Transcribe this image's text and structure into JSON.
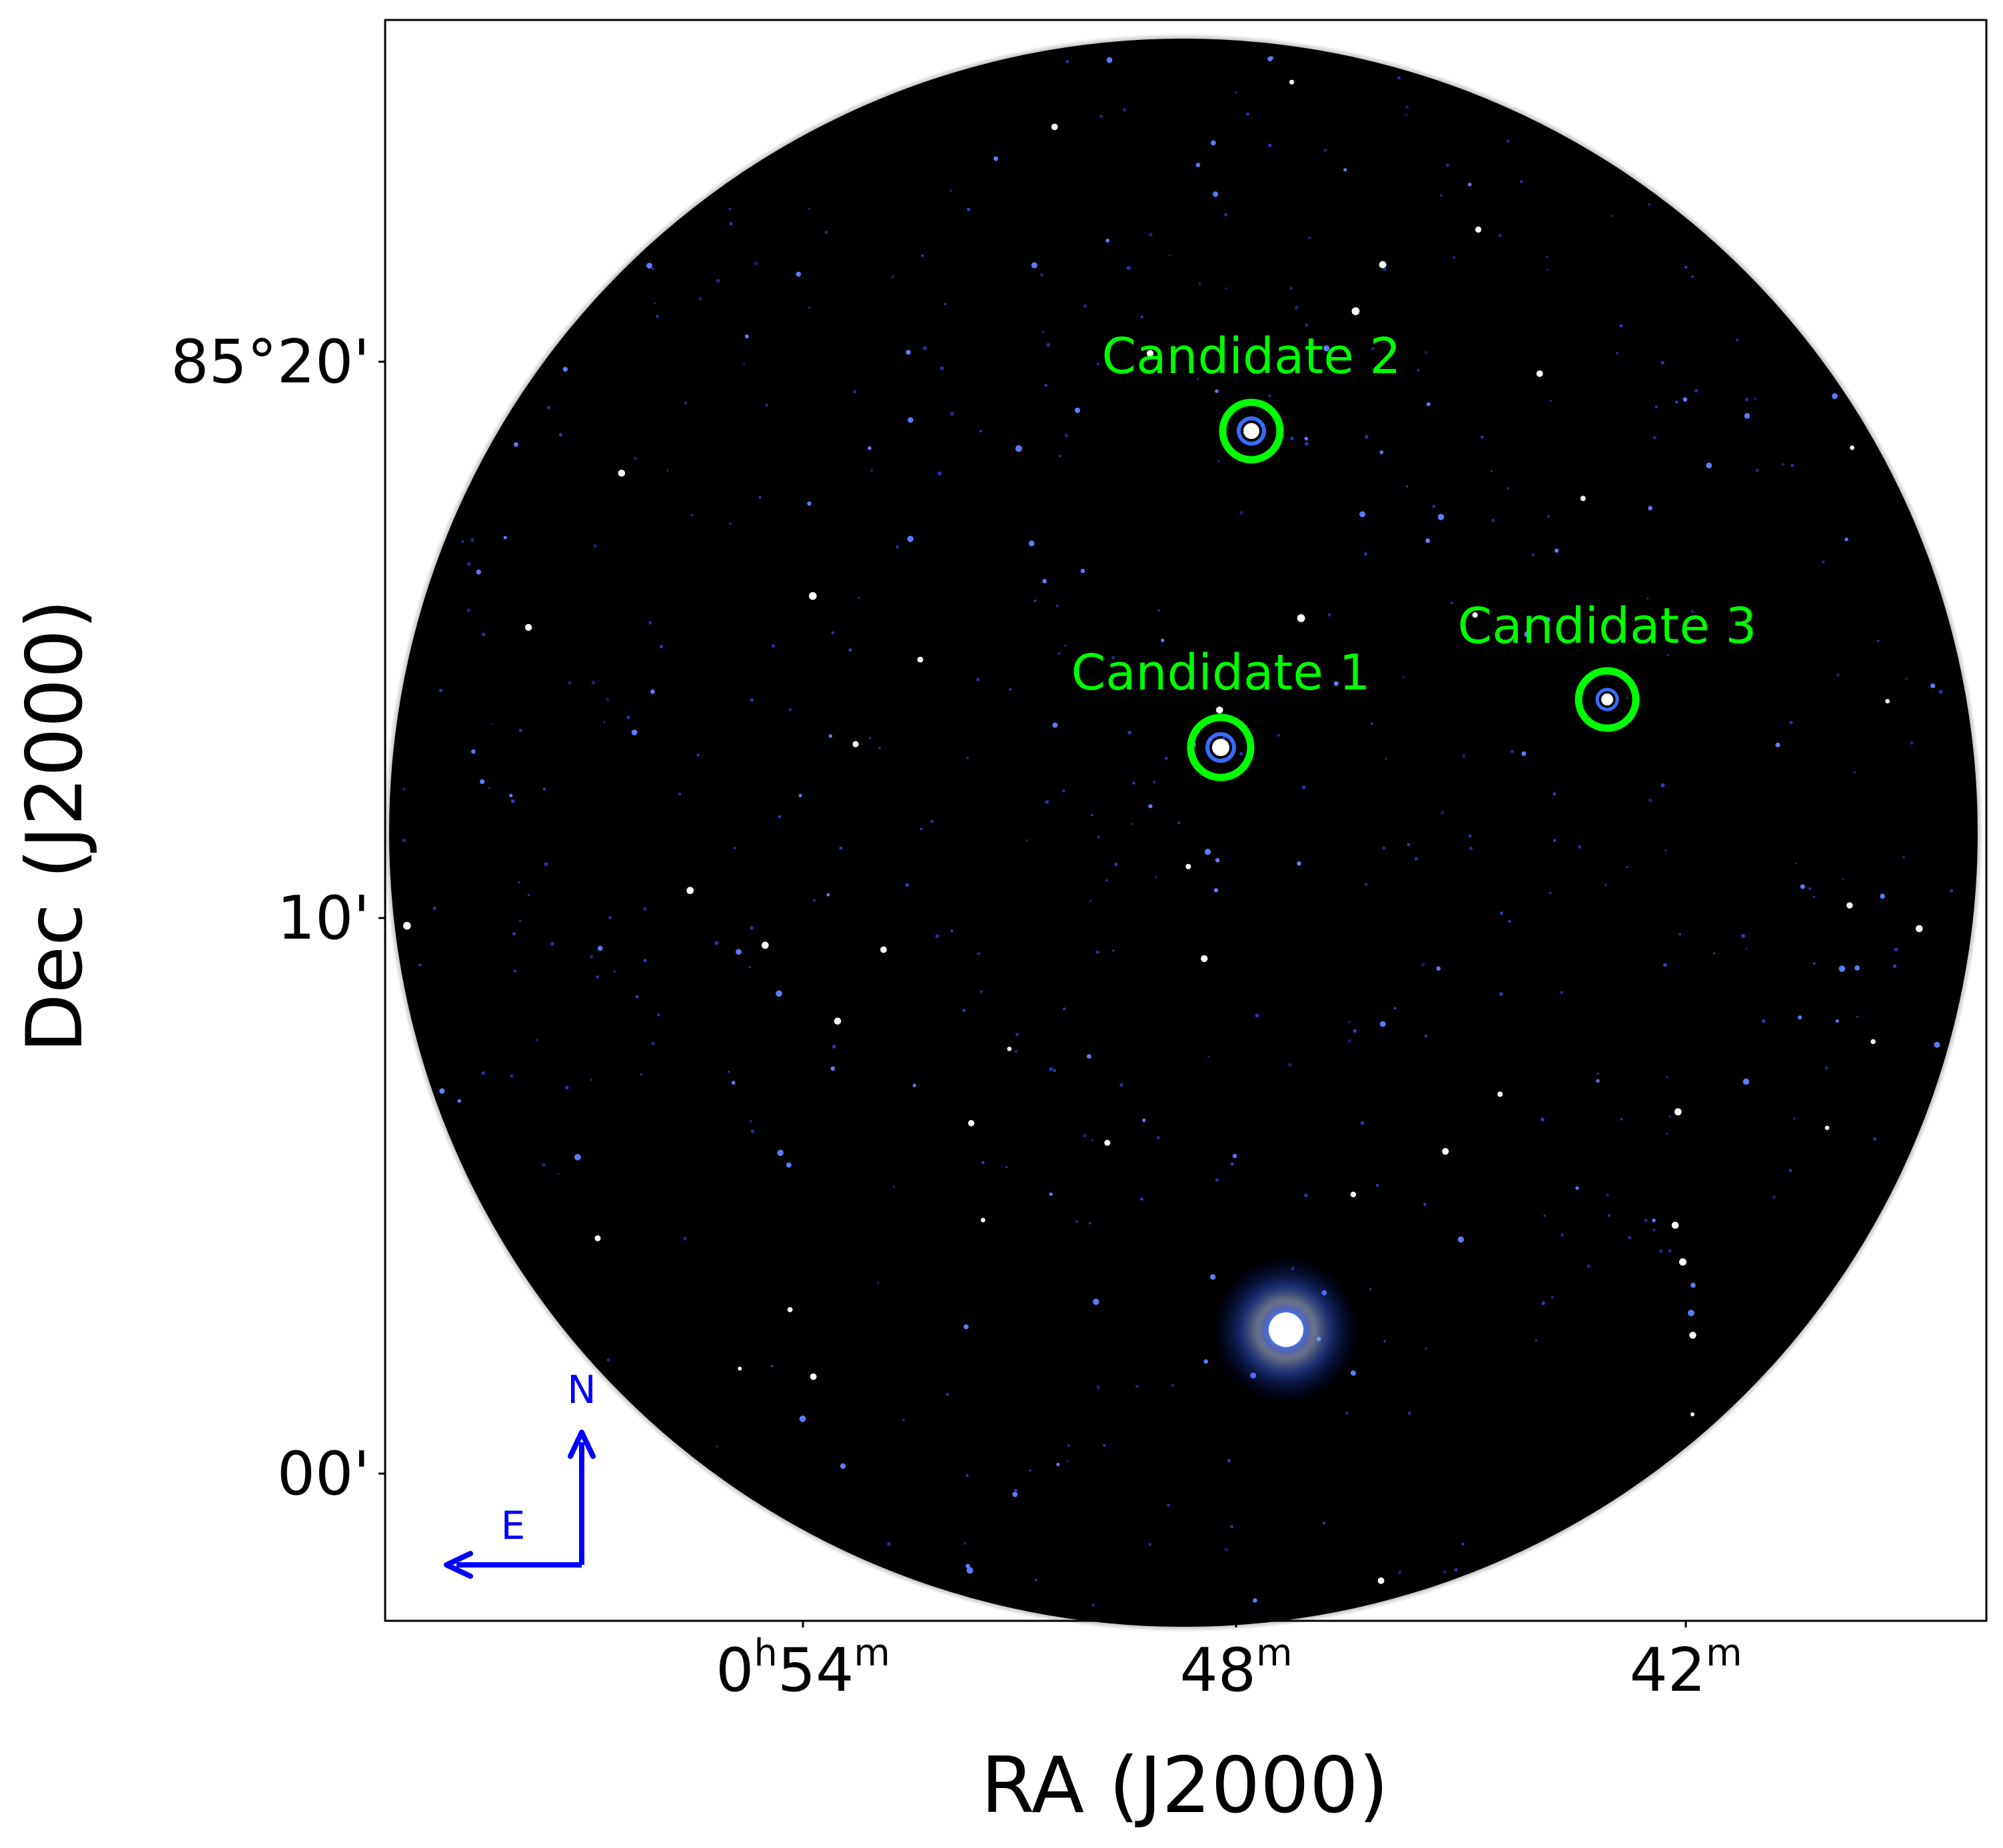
{
  "figure": {
    "xlabel": "RA (J2000)",
    "ylabel": "Dec (J2000)",
    "colors": {
      "background_sky": "#000000",
      "frame": "#000000",
      "star": "#3a5cff",
      "star_core": "#ffffff",
      "annotation": "#00ff00",
      "compass": "#0000ff"
    },
    "x_ticks": [
      {
        "h": "0",
        "m": "54",
        "value": "0h54m"
      },
      {
        "h": "",
        "m": "48",
        "value": "48m"
      },
      {
        "h": "",
        "m": "42",
        "value": "42m"
      }
    ],
    "y_ticks": [
      {
        "label": "85°20'"
      },
      {
        "label": "10'"
      },
      {
        "label": "00'"
      }
    ],
    "candidates": [
      {
        "label": "Candidate 1"
      },
      {
        "label": "Candidate 2"
      },
      {
        "label": "Candidate 3"
      }
    ],
    "compass": {
      "north": "N",
      "east": "E"
    }
  }
}
